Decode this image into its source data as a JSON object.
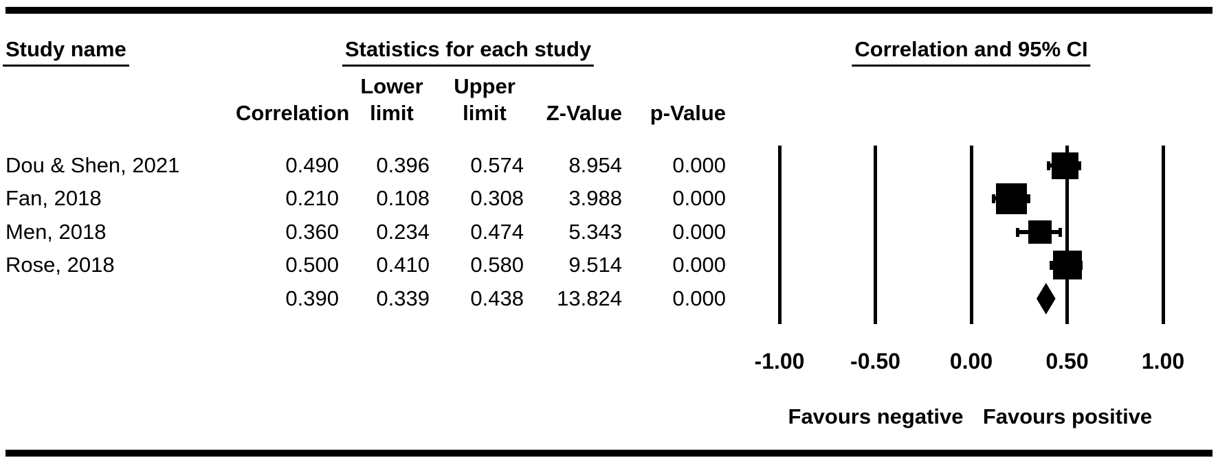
{
  "table": {
    "headers": {
      "study_group": "Study name",
      "stats_group": "Statistics for each study",
      "plot_group": "Correlation and 95% CI",
      "correlation": "Correlation",
      "lower_line1": "Lower",
      "lower_line2": "limit",
      "upper_line1": "Upper",
      "upper_line2": "limit",
      "z_value": "Z-Value",
      "p_value": "p-Value"
    },
    "rows": [
      {
        "study": "Dou & Shen, 2021",
        "correlation": "0.490",
        "lower": "0.396",
        "upper": "0.574",
        "z": "8.954",
        "p": "0.000"
      },
      {
        "study": "Fan, 2018",
        "correlation": "0.210",
        "lower": "0.108",
        "upper": "0.308",
        "z": "3.988",
        "p": "0.000"
      },
      {
        "study": "Men, 2018",
        "correlation": "0.360",
        "lower": "0.234",
        "upper": "0.474",
        "z": "5.343",
        "p": "0.000"
      },
      {
        "study": "Rose, 2018",
        "correlation": "0.500",
        "lower": "0.410",
        "upper": "0.580",
        "z": "9.514",
        "p": "0.000"
      },
      {
        "study": "",
        "correlation": "0.390",
        "lower": "0.339",
        "upper": "0.438",
        "z": "13.824",
        "p": "0.000"
      }
    ]
  },
  "chart_data": {
    "type": "forest",
    "title": "Correlation and 95% CI",
    "xlim": [
      -1.0,
      1.0
    ],
    "x_ticks": [
      -1.0,
      -0.5,
      0.0,
      0.5,
      1.0
    ],
    "x_tick_labels": [
      "-1.00",
      "-0.50",
      "0.00",
      "0.50",
      "1.00"
    ],
    "grid": "vertical-lines-only",
    "marker_color": "#000000",
    "studies": [
      {
        "name": "Dou & Shen, 2021",
        "point": 0.49,
        "lower": 0.396,
        "upper": 0.574,
        "marker_size_px": 39
      },
      {
        "name": "Fan, 2018",
        "point": 0.21,
        "lower": 0.108,
        "upper": 0.308,
        "marker_size_px": 45
      },
      {
        "name": "Men, 2018",
        "point": 0.36,
        "lower": 0.234,
        "upper": 0.474,
        "marker_size_px": 34
      },
      {
        "name": "Rose, 2018",
        "point": 0.5,
        "lower": 0.41,
        "upper": 0.58,
        "marker_size_px": 42
      }
    ],
    "summary": {
      "point": 0.39,
      "lower": 0.339,
      "upper": 0.438
    },
    "footer_left": "Favours negative",
    "footer_right": "Favours positive"
  }
}
